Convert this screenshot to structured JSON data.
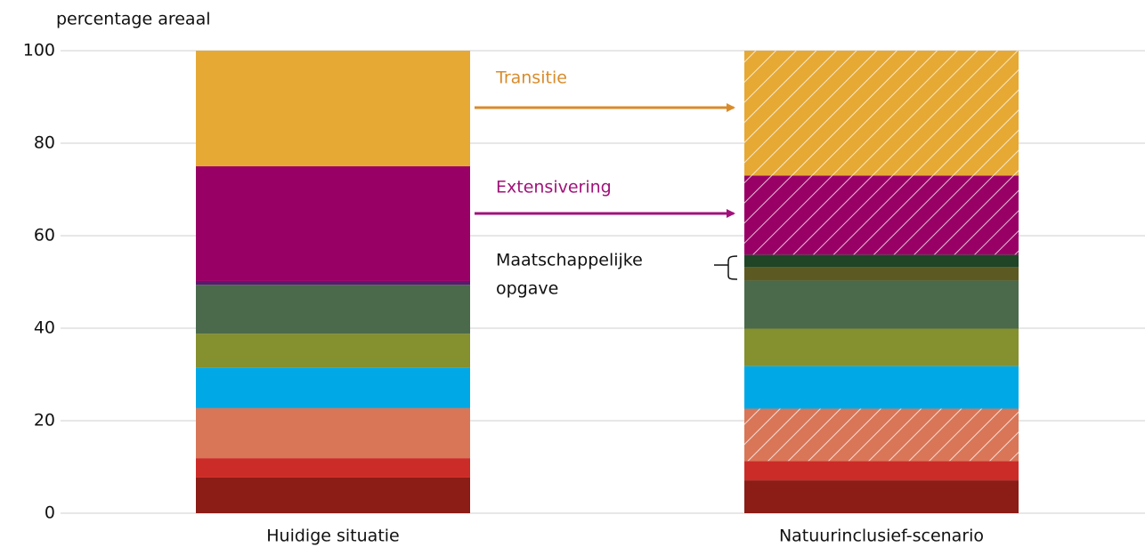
{
  "chart_data": {
    "type": "stacked_bar",
    "ylabel": "percentage areaal",
    "categories": [
      "Huidige situatie",
      "Natuurinclusief-scenario"
    ],
    "ylim": [
      0,
      100
    ],
    "yticks": [
      0,
      20,
      40,
      60,
      80,
      100
    ],
    "grid": true,
    "series": [
      {
        "color": "#8b1c16",
        "values": [
          7.7,
          7.1
        ],
        "hatched": [
          false,
          false
        ]
      },
      {
        "color": "#cc2c27",
        "values": [
          4.2,
          4.2
        ],
        "hatched": [
          false,
          false
        ]
      },
      {
        "color": "#d97658",
        "values": [
          10.8,
          11.3
        ],
        "hatched": [
          false,
          true
        ]
      },
      {
        "color": "#00a9e6",
        "values": [
          8.8,
          9.2
        ],
        "hatched": [
          false,
          false
        ]
      },
      {
        "color": "#85902f",
        "values": [
          7.3,
          8.1
        ],
        "hatched": [
          false,
          false
        ]
      },
      {
        "color": "#4a6a4b",
        "values": [
          10.6,
          10.4
        ],
        "hatched": [
          false,
          false
        ]
      },
      {
        "color": "#5c5a22",
        "values": [
          0,
          2.9
        ],
        "hatched": [
          false,
          false
        ]
      },
      {
        "color": "#1f4526",
        "values": [
          0,
          2.7
        ],
        "hatched": [
          false,
          false
        ]
      },
      {
        "color": "#5a1a6e",
        "values": [
          0.8,
          0
        ],
        "hatched": [
          false,
          false
        ]
      },
      {
        "color": "#990066",
        "values": [
          24.8,
          17.1
        ],
        "hatched": [
          false,
          true
        ]
      },
      {
        "color": "#e6a934",
        "values": [
          25.0,
          27.0
        ],
        "hatched": [
          false,
          true
        ]
      }
    ],
    "annotations": [
      {
        "lines": [
          "Transitie"
        ],
        "color": "#d98b2b"
      },
      {
        "lines": [
          "Extensivering"
        ],
        "color": "#a0127a"
      },
      {
        "lines": [
          "Maatschappelijke",
          "opgave"
        ],
        "color": "#111111"
      }
    ]
  }
}
